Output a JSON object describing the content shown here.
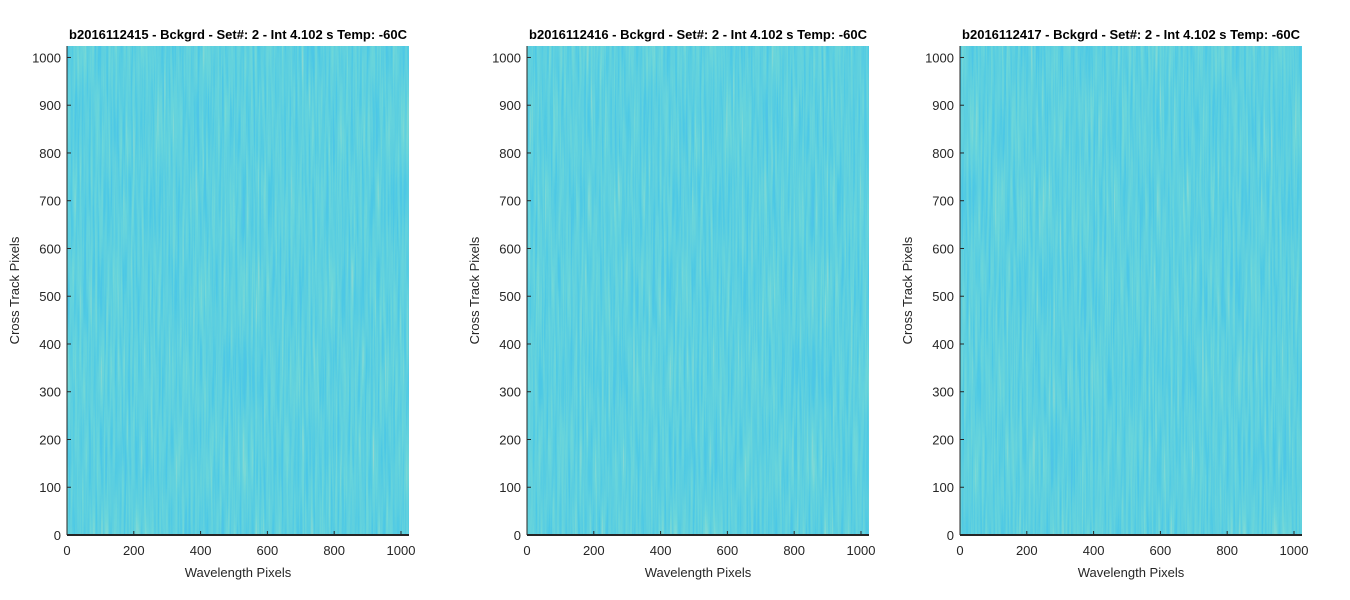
{
  "chart_data": [
    {
      "type": "heatmap",
      "title": "b2016112415 - Bckgrd - Set#: 2 - Int 4.102 s Temp: -60C",
      "xlabel": "Wavelength Pixels",
      "ylabel": "Cross Track Pixels",
      "xlim": [
        0,
        1024
      ],
      "ylim": [
        0,
        1024
      ],
      "xticks": [
        0,
        200,
        400,
        600,
        800,
        1000
      ],
      "yticks": [
        0,
        100,
        200,
        300,
        400,
        500,
        600,
        700,
        800,
        900,
        1000
      ],
      "grid": false,
      "colormap": [
        "#1f8fd6",
        "#14a3c8",
        "#2bb0b0",
        "#6fbf8e"
      ]
    },
    {
      "type": "heatmap",
      "title": "b2016112416 - Bckgrd - Set#: 2 - Int 4.102 s Temp: -60C",
      "xlabel": "Wavelength Pixels",
      "ylabel": "Cross Track Pixels",
      "xlim": [
        0,
        1024
      ],
      "ylim": [
        0,
        1024
      ],
      "xticks": [
        0,
        200,
        400,
        600,
        800,
        1000
      ],
      "yticks": [
        0,
        100,
        200,
        300,
        400,
        500,
        600,
        700,
        800,
        900,
        1000
      ],
      "grid": false,
      "colormap": [
        "#1f8fd6",
        "#14a3c8",
        "#2bb0b0",
        "#6fbf8e"
      ]
    },
    {
      "type": "heatmap",
      "title": "b2016112417 - Bckgrd - Set#: 2 - Int 4.102 s Temp: -60C",
      "xlabel": "Wavelength Pixels",
      "ylabel": "Cross Track Pixels",
      "xlim": [
        0,
        1024
      ],
      "ylim": [
        0,
        1024
      ],
      "xticks": [
        0,
        200,
        400,
        600,
        800,
        1000
      ],
      "yticks": [
        0,
        100,
        200,
        300,
        400,
        500,
        600,
        700,
        800,
        900,
        1000
      ],
      "grid": false,
      "colormap": [
        "#1f8fd6",
        "#14a3c8",
        "#2bb0b0",
        "#6fbf8e"
      ]
    }
  ]
}
